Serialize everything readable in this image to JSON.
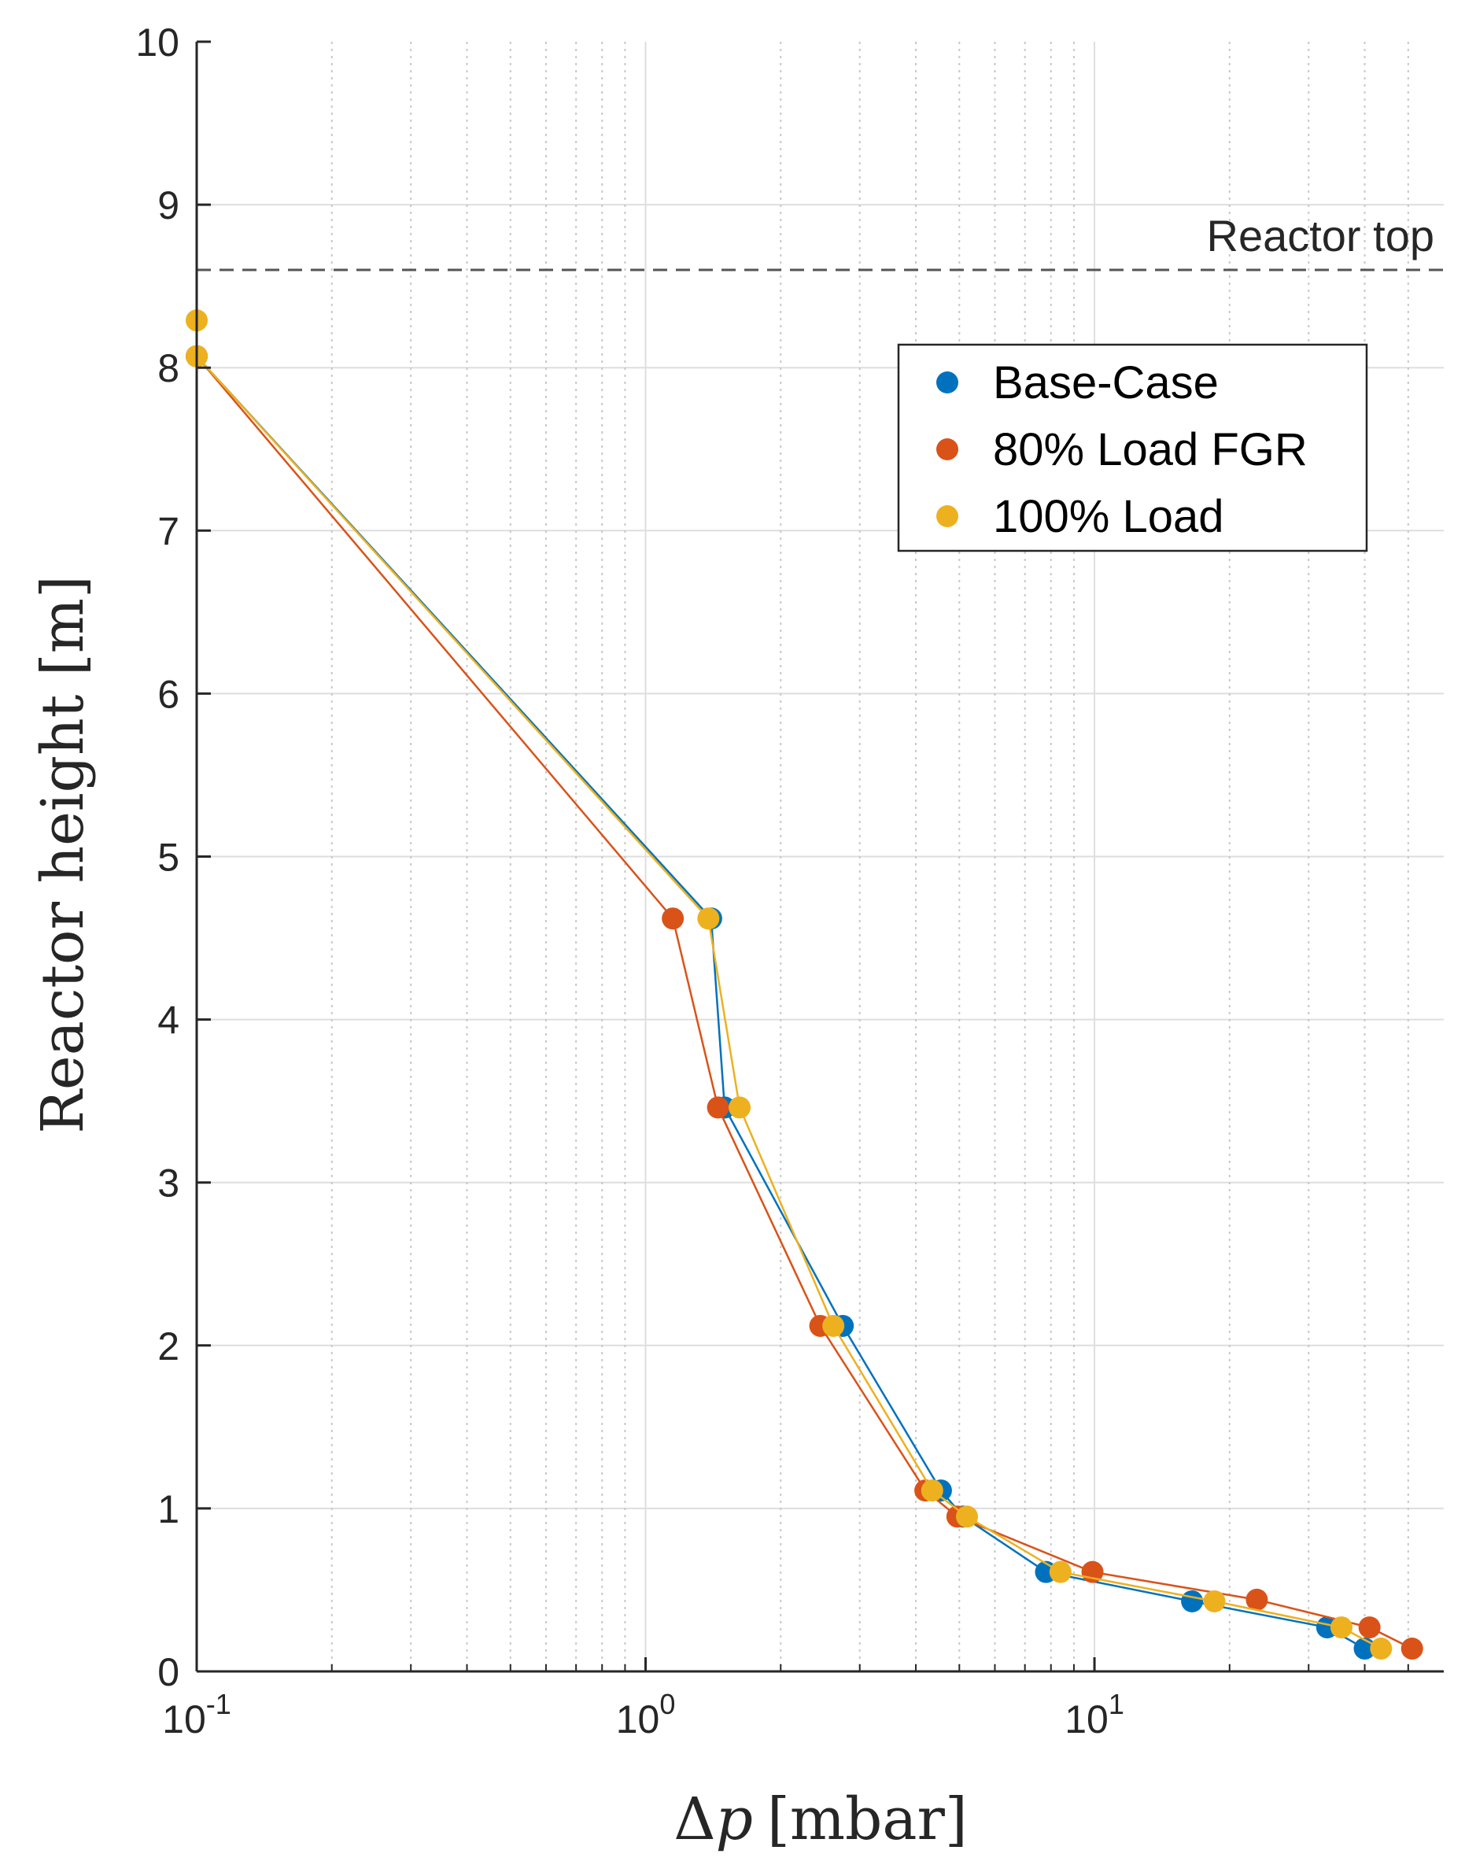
{
  "chart_data": {
    "type": "scatter",
    "title": "",
    "xlabel": "Δp [mbar]",
    "xlabel_parts": {
      "delta": "Δ",
      "symbol": "p",
      "unit": "[mbar]"
    },
    "ylabel": "Reactor height [m]",
    "xscale": "log",
    "xlim": [
      0.1,
      60
    ],
    "ylim": [
      0,
      10
    ],
    "yticks": [
      0,
      1,
      2,
      3,
      4,
      5,
      6,
      7,
      8,
      9,
      10
    ],
    "xticks": [
      {
        "value": 0.1,
        "base": "10",
        "exponent": "-1"
      },
      {
        "value": 1,
        "base": "10",
        "exponent": "0"
      },
      {
        "value": 10,
        "base": "10",
        "exponent": "1"
      }
    ],
    "grid": true,
    "legend_position": "upper-right",
    "series": [
      {
        "name": "Base-Case",
        "color": "#0072BD",
        "x": [
          0.1,
          1.4,
          1.5,
          2.75,
          4.55,
          5.1,
          7.8,
          16.5,
          33,
          40
        ],
        "y": [
          8.07,
          4.62,
          3.46,
          2.12,
          1.11,
          0.95,
          0.61,
          0.43,
          0.27,
          0.14
        ]
      },
      {
        "name": "80% Load FGR",
        "color": "#D95319",
        "x": [
          0.1,
          1.15,
          1.45,
          2.45,
          4.2,
          4.95,
          9.9,
          23,
          41,
          51
        ],
        "y": [
          8.07,
          4.62,
          3.46,
          2.12,
          1.11,
          0.95,
          0.61,
          0.44,
          0.27,
          0.14
        ]
      },
      {
        "name": "100% Load",
        "color": "#EDB120",
        "x": [
          0.1,
          0.1,
          1.38,
          1.62,
          2.62,
          4.35,
          5.2,
          8.4,
          18.5,
          35.5,
          43.5
        ],
        "y": [
          8.29,
          8.07,
          4.62,
          3.46,
          2.12,
          1.11,
          0.95,
          0.61,
          0.43,
          0.27,
          0.14
        ]
      }
    ],
    "annotations": [
      {
        "text": "Reactor top",
        "y": 8.6,
        "style": "dashed-horizontal-line"
      }
    ]
  }
}
